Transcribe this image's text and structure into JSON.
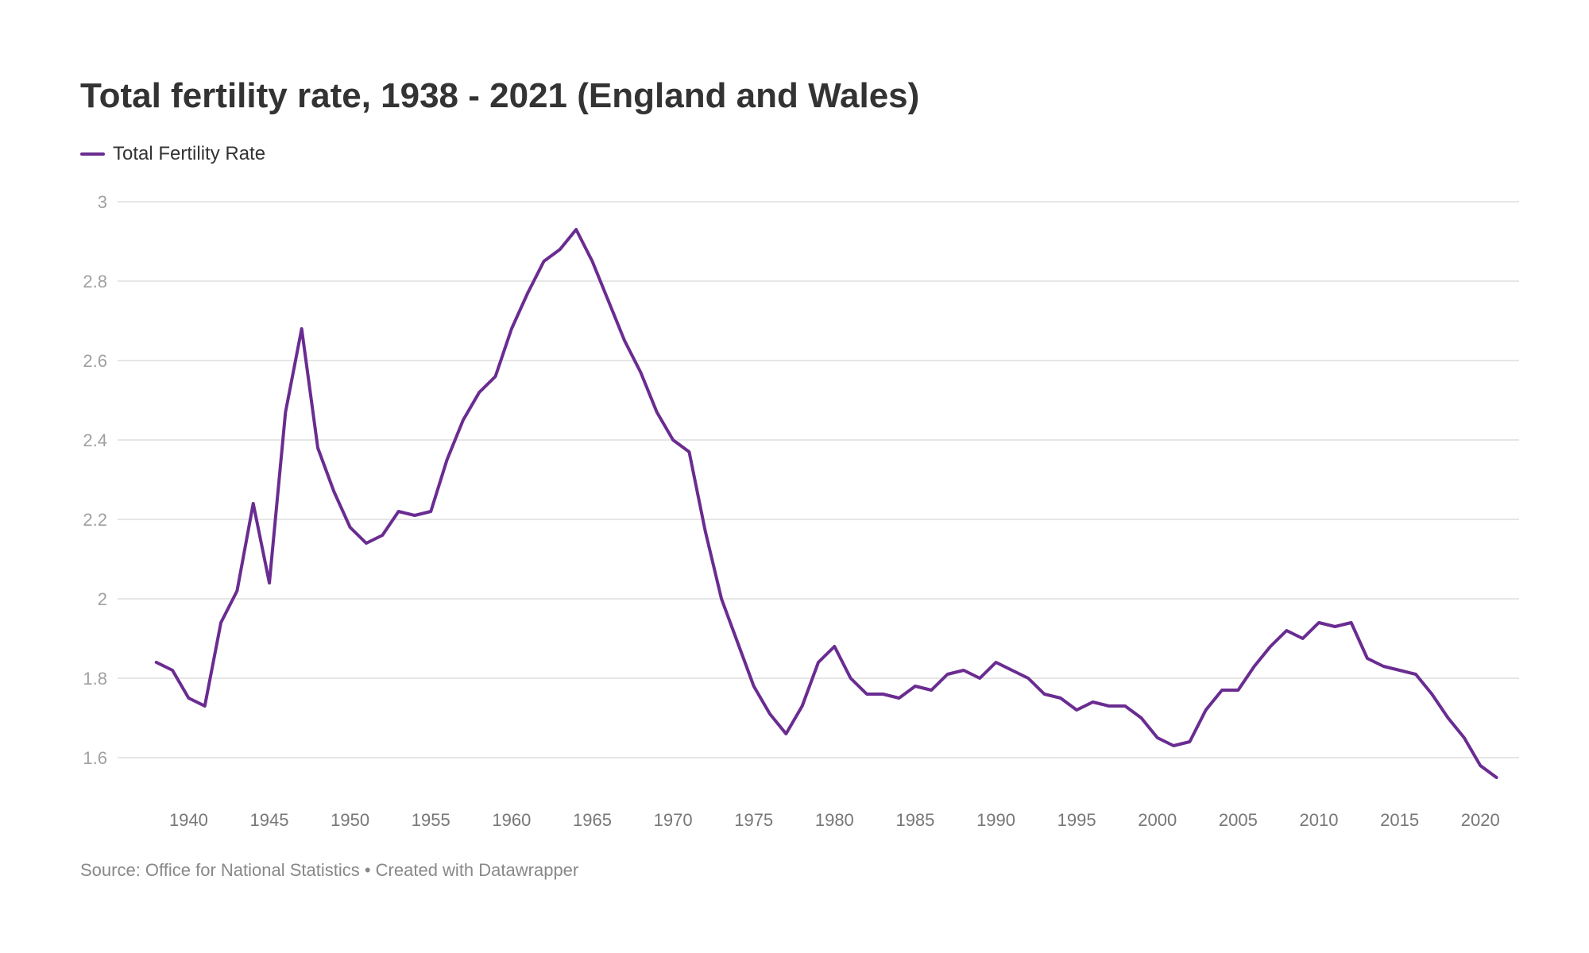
{
  "title": "Total fertility rate, 1938 - 2021 (England and Wales)",
  "source": "Source: Office for National Statistics • Created with Datawrapper",
  "colors": {
    "series": "#6a2c91",
    "grid": "#dddddd",
    "y_tick": "#a0a0a0",
    "x_tick": "#777777"
  },
  "chart_data": {
    "type": "line",
    "title": "Total fertility rate, 1938 - 2021 (England and Wales)",
    "xlabel": "",
    "ylabel": "",
    "xlim": [
      1938,
      2021
    ],
    "ylim": [
      1.5,
      3
    ],
    "y_ticks": [
      {
        "value": 1.6,
        "label": "1.6"
      },
      {
        "value": 1.8,
        "label": "1.8"
      },
      {
        "value": 2.0,
        "label": "2"
      },
      {
        "value": 2.2,
        "label": "2.2"
      },
      {
        "value": 2.4,
        "label": "2.4"
      },
      {
        "value": 2.6,
        "label": "2.6"
      },
      {
        "value": 2.8,
        "label": "2.8"
      },
      {
        "value": 3.0,
        "label": "3"
      }
    ],
    "x_ticks": [
      {
        "value": 1940,
        "label": "1940"
      },
      {
        "value": 1945,
        "label": "1945"
      },
      {
        "value": 1950,
        "label": "1950"
      },
      {
        "value": 1955,
        "label": "1955"
      },
      {
        "value": 1960,
        "label": "1960"
      },
      {
        "value": 1965,
        "label": "1965"
      },
      {
        "value": 1970,
        "label": "1970"
      },
      {
        "value": 1975,
        "label": "1975"
      },
      {
        "value": 1980,
        "label": "1980"
      },
      {
        "value": 1985,
        "label": "1985"
      },
      {
        "value": 1990,
        "label": "1990"
      },
      {
        "value": 1995,
        "label": "1995"
      },
      {
        "value": 2000,
        "label": "2000"
      },
      {
        "value": 2005,
        "label": "2005"
      },
      {
        "value": 2010,
        "label": "2010"
      },
      {
        "value": 2015,
        "label": "2015"
      },
      {
        "value": 2020,
        "label": "2020"
      }
    ],
    "grid": true,
    "legend": "top-left",
    "series": [
      {
        "name": "Total Fertility Rate",
        "x": [
          1938,
          1939,
          1940,
          1941,
          1942,
          1943,
          1944,
          1945,
          1946,
          1947,
          1948,
          1949,
          1950,
          1951,
          1952,
          1953,
          1954,
          1955,
          1956,
          1957,
          1958,
          1959,
          1960,
          1961,
          1962,
          1963,
          1964,
          1965,
          1966,
          1967,
          1968,
          1969,
          1970,
          1971,
          1972,
          1973,
          1974,
          1975,
          1976,
          1977,
          1978,
          1979,
          1980,
          1981,
          1982,
          1983,
          1984,
          1985,
          1986,
          1987,
          1988,
          1989,
          1990,
          1991,
          1992,
          1993,
          1994,
          1995,
          1996,
          1997,
          1998,
          1999,
          2000,
          2001,
          2002,
          2003,
          2004,
          2005,
          2006,
          2007,
          2008,
          2009,
          2010,
          2011,
          2012,
          2013,
          2014,
          2015,
          2016,
          2017,
          2018,
          2019,
          2020,
          2021
        ],
        "values": [
          1.84,
          1.82,
          1.75,
          1.73,
          1.94,
          2.02,
          2.24,
          2.04,
          2.47,
          2.68,
          2.38,
          2.27,
          2.18,
          2.14,
          2.16,
          2.22,
          2.21,
          2.22,
          2.35,
          2.45,
          2.52,
          2.56,
          2.68,
          2.77,
          2.85,
          2.88,
          2.93,
          2.85,
          2.75,
          2.65,
          2.57,
          2.47,
          2.4,
          2.37,
          2.17,
          2.0,
          1.89,
          1.78,
          1.71,
          1.66,
          1.73,
          1.84,
          1.88,
          1.8,
          1.76,
          1.76,
          1.75,
          1.78,
          1.77,
          1.81,
          1.82,
          1.8,
          1.84,
          1.82,
          1.8,
          1.76,
          1.75,
          1.72,
          1.74,
          1.73,
          1.73,
          1.7,
          1.65,
          1.63,
          1.64,
          1.72,
          1.77,
          1.77,
          1.83,
          1.88,
          1.92,
          1.9,
          1.94,
          1.93,
          1.94,
          1.85,
          1.83,
          1.82,
          1.81,
          1.76,
          1.7,
          1.65,
          1.58,
          1.55
        ]
      }
    ]
  }
}
